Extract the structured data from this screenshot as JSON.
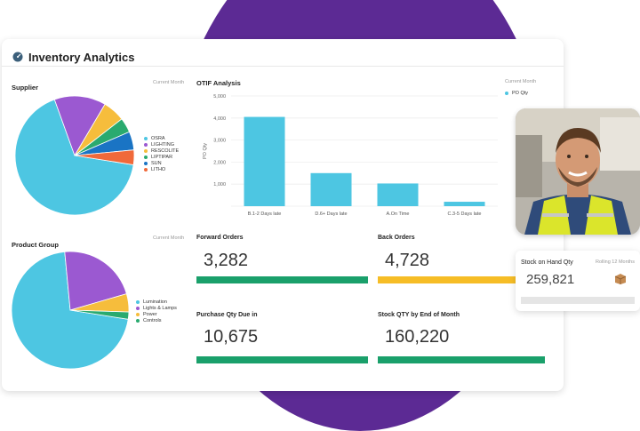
{
  "header": {
    "title": "Inventory Analytics",
    "icon": "gauge-icon"
  },
  "supplier": {
    "title": "Supplier",
    "period": "Current Month",
    "legend": [
      "OSRA",
      "LIGHTING",
      "RESCOLITE",
      "LIPTIPAR",
      "SUN",
      "LITHO"
    ],
    "colors": [
      "#4dc6e2",
      "#9b59d1",
      "#f6bd3c",
      "#2aaa6f",
      "#1a74c4",
      "#f0693a"
    ],
    "shares": [
      67,
      14,
      6,
      4,
      5,
      4
    ]
  },
  "product_group": {
    "title": "Product Group",
    "period": "Current Month",
    "legend": [
      "Lumination",
      "Lights & Lamps",
      "Power",
      "Controls"
    ],
    "colors": [
      "#4dc6e2",
      "#9b59d1",
      "#f6bd3c",
      "#2aaa6f"
    ],
    "shares": [
      71,
      22,
      5,
      2
    ]
  },
  "otif": {
    "title": "OTIF Analysis",
    "period": "Current Month",
    "legend_label": "PO Qty",
    "ylabel": "PO Qty",
    "color": "#4dc6e2"
  },
  "chart_data": {
    "type": "bar",
    "categories": [
      "B.1-2 Days late",
      "D.6+ Days late",
      "A.On Time",
      "C.3-5 Days late"
    ],
    "values": [
      4050,
      1500,
      1030,
      200
    ],
    "ylabel": "PO Qty",
    "ylim": [
      0,
      5000
    ],
    "yticks": [
      "5,000",
      "4,000",
      "3,000",
      "2,000",
      "1,000",
      "0"
    ],
    "grid": true
  },
  "metrics": {
    "forward_orders": {
      "label": "Forward Orders",
      "value": "3,282",
      "color": "#1aa06b"
    },
    "back_orders": {
      "label": "Back Orders",
      "value": "4,728",
      "color": "#f6bd26"
    },
    "purchase_qty": {
      "label": "Purchase Qty Due in",
      "value": "10,675",
      "color": "#1aa06b"
    },
    "stock_qty": {
      "label": "Stock QTY by End of Month",
      "value": "160,220",
      "color": "#1aa06b"
    }
  },
  "stock_on_hand": {
    "label": "Stock on Hand Qty",
    "period": "Rolling 12 Months",
    "value": "259,821",
    "icon": "box-icon"
  },
  "photo": {
    "icon": "worker-portrait-icon"
  }
}
